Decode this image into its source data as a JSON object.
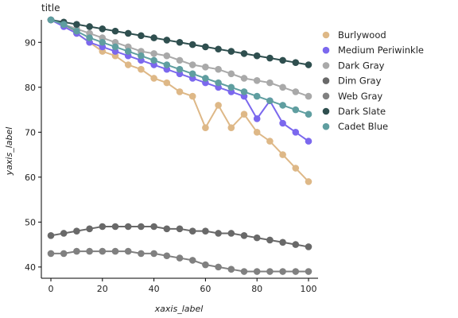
{
  "chart_data": {
    "type": "line",
    "title": "title",
    "xlabel": "xaxis_label",
    "ylabel": "yaxis_label",
    "xlim": [
      0,
      100
    ],
    "ylim": [
      37.5,
      95
    ],
    "x_ticks": [
      0,
      20,
      40,
      60,
      80,
      100
    ],
    "y_ticks": [
      40,
      50,
      60,
      70,
      80,
      90
    ],
    "grid": false,
    "legend_position": "right",
    "x": [
      0,
      5,
      10,
      15,
      20,
      25,
      30,
      35,
      40,
      45,
      50,
      55,
      60,
      65,
      70,
      75,
      80,
      85,
      90,
      95,
      100
    ],
    "series": [
      {
        "name": "Burlywood",
        "color": "#DEB887",
        "values": [
          95,
          94,
          92,
          90,
          88,
          87,
          85,
          84,
          82,
          81,
          79,
          78,
          71,
          76,
          71,
          74,
          70,
          68,
          65,
          62,
          59
        ]
      },
      {
        "name": "Medium Periwinkle",
        "color": "#7B68EE",
        "values": [
          95,
          93.5,
          92,
          90,
          89,
          88,
          87,
          86,
          85,
          84,
          83,
          82,
          81,
          80,
          79,
          78,
          73,
          77,
          72,
          70,
          68
        ]
      },
      {
        "name": "Dark Gray",
        "color": "#A9A9A9",
        "values": [
          95,
          94,
          93,
          92,
          91,
          90,
          89,
          88,
          87.5,
          87,
          86,
          85,
          84.5,
          84,
          83,
          82,
          81.5,
          81,
          80,
          79,
          78
        ]
      },
      {
        "name": "Dark Slate",
        "color": "#2F4F4F",
        "values": [
          95,
          94.5,
          94,
          93.5,
          93,
          92.5,
          92,
          91.5,
          91,
          90.5,
          90,
          89.5,
          89,
          88.5,
          88,
          87.5,
          87,
          86.5,
          86,
          85.5,
          85
        ]
      },
      {
        "name": "Cadet Blue",
        "color": "#5F9EA0",
        "values": [
          95,
          94,
          92.5,
          91,
          90,
          89,
          88,
          87,
          86,
          85,
          84,
          83,
          82,
          81,
          80,
          79,
          78,
          77,
          76,
          75,
          74
        ]
      },
      {
        "name": "Dim Gray",
        "color": "#696969",
        "values": [
          47,
          47.5,
          48,
          48.5,
          49,
          49,
          49,
          49,
          49,
          48.5,
          48.5,
          48,
          48,
          47.5,
          47.5,
          47,
          46.5,
          46,
          45.5,
          45,
          44.5
        ]
      },
      {
        "name": "Web Gray",
        "color": "#808080",
        "values": [
          43,
          43,
          43.5,
          43.5,
          43.5,
          43.5,
          43.5,
          43,
          43,
          42.5,
          42,
          41.5,
          40.5,
          40,
          39.5,
          39,
          39,
          39,
          39,
          39,
          39
        ]
      }
    ],
    "legend_order": [
      "Burlywood",
      "Medium Periwinkle",
      "Dark Gray",
      "Dim Gray",
      "Web Gray",
      "Dark Slate",
      "Cadet Blue"
    ]
  }
}
